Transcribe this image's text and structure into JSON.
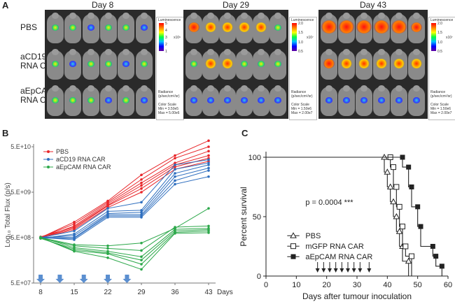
{
  "panel_a": {
    "letter": "A",
    "days": [
      "Day 8",
      "Day 29",
      "Day 43"
    ],
    "rows": [
      {
        "line1": "PBS",
        "line2": ""
      },
      {
        "line1": "aCD19",
        "line2": "RNA CAR"
      },
      {
        "line1": "aEpCAM",
        "line2": "RNA CAR"
      }
    ],
    "colorbars": [
      {
        "title": "Luminescence",
        "ticks": [
          "5",
          "4",
          "3",
          "2",
          "1"
        ],
        "exp": "x10⁶",
        "radiance": "Radiance",
        "units": "(p/sec/cm²/sr)",
        "scale": "Color Scale",
        "min": "Min = 3.50e5",
        "max": "Max = 5.00e6"
      },
      {
        "title": "Luminescence",
        "ticks": [
          "2.0",
          "1.5",
          "1.0",
          "0.5"
        ],
        "exp": "x10⁷",
        "radiance": "Radiance",
        "units": "(p/sec/cm²/sr)",
        "scale": "Color Scale",
        "min": "Min = 1.50e6",
        "max": "Max = 2.00e7"
      },
      {
        "title": "Luminescence",
        "ticks": [
          "2.0",
          "1.5",
          "1.0",
          "0.5"
        ],
        "exp": "x10⁷",
        "radiance": "Radiance",
        "units": "(p/sec/cm²/sr)",
        "scale": "Color Scale",
        "min": "Min = 1.50e6",
        "max": "Max = 2.00e7"
      }
    ]
  },
  "chart_data": [
    {
      "panel": "B",
      "type": "line",
      "ylabel": "Log₁₀ Total Flux (p/s)",
      "xlabel_unit": "Days",
      "x": [
        8,
        15,
        22,
        29,
        36,
        43
      ],
      "x_ticks": [
        "8",
        "15",
        "22",
        "29",
        "36",
        "43"
      ],
      "y_ticks": [
        "5.E+07",
        "5.E+08",
        "5.E+09",
        "5.E+10"
      ],
      "ylim_log10": [
        7.699,
        10.699
      ],
      "legend": [
        "PBS",
        "aCD19 RNA CAR",
        "aEpCAM RNA CAR"
      ],
      "colors": {
        "PBS": "#e8262a",
        "aCD19 RNA CAR": "#2f6fbf",
        "aEpCAM RNA CAR": "#2ca84a",
        "arrow": "#5b8fd0"
      },
      "dosing_days": [
        8,
        12,
        17,
        22,
        26
      ],
      "series": [
        {
          "group": "PBS",
          "values": [
            500000000.0,
            1100000000.0,
            3200000000.0,
            12000000000.0,
            32000000000.0,
            68000000000.0
          ]
        },
        {
          "group": "PBS",
          "values": [
            500000000.0,
            1000000000.0,
            3000000000.0,
            9500000000.0,
            28000000000.0,
            50000000000.0
          ]
        },
        {
          "group": "PBS",
          "values": [
            480000000.0,
            900000000.0,
            2800000000.0,
            8000000000.0,
            22000000000.0,
            40000000000.0
          ]
        },
        {
          "group": "PBS",
          "values": [
            520000000.0,
            850000000.0,
            2600000000.0,
            7000000000.0,
            20000000000.0,
            32000000000.0
          ]
        },
        {
          "group": "PBS",
          "values": [
            500000000.0,
            800000000.0,
            2500000000.0,
            6000000000.0,
            18000000000.0,
            28000000000.0
          ]
        },
        {
          "group": "PBS",
          "values": [
            490000000.0,
            750000000.0,
            2300000000.0,
            5000000000.0,
            16000000000.0,
            24000000000.0
          ]
        },
        {
          "group": "aCD19 RNA CAR",
          "values": [
            500000000.0,
            700000000.0,
            2200000000.0,
            3000000000.0,
            20000000000.0,
            26000000000.0
          ]
        },
        {
          "group": "aCD19 RNA CAR",
          "values": [
            480000000.0,
            600000000.0,
            1900000000.0,
            2000000000.0,
            16000000000.0,
            22000000000.0
          ]
        },
        {
          "group": "aCD19 RNA CAR",
          "values": [
            500000000.0,
            550000000.0,
            1700000000.0,
            1800000000.0,
            13000000000.0,
            20000000000.0
          ]
        },
        {
          "group": "aCD19 RNA CAR",
          "values": [
            510000000.0,
            500000000.0,
            1600000000.0,
            1600000000.0,
            11000000000.0,
            17000000000.0
          ]
        },
        {
          "group": "aCD19 RNA CAR",
          "values": [
            490000000.0,
            480000000.0,
            1500000000.0,
            1500000000.0,
            9000000000.0,
            15000000000.0
          ]
        },
        {
          "group": "aCD19 RNA CAR",
          "values": [
            500000000.0,
            450000000.0,
            1400000000.0,
            1400000000.0,
            7500000000.0,
            11000000000.0
          ]
        },
        {
          "group": "aEpCAM RNA CAR",
          "values": [
            500000000.0,
            350000000.0,
            330000000.0,
            380000000.0,
            800000000.0,
            2200000000.0
          ]
        },
        {
          "group": "aEpCAM RNA CAR",
          "values": [
            490000000.0,
            330000000.0,
            290000000.0,
            260000000.0,
            850000000.0,
            900000000.0
          ]
        },
        {
          "group": "aEpCAM RNA CAR",
          "values": [
            510000000.0,
            300000000.0,
            250000000.0,
            190000000.0,
            760000000.0,
            800000000.0
          ]
        },
        {
          "group": "aEpCAM RNA CAR",
          "values": [
            480000000.0,
            280000000.0,
            230000000.0,
            160000000.0,
            700000000.0,
            750000000.0
          ]
        },
        {
          "group": "aEpCAM RNA CAR",
          "values": [
            500000000.0,
            260000000.0,
            220000000.0,
            130000000.0,
            650000000.0,
            700000000.0
          ]
        },
        {
          "group": "aEpCAM RNA CAR",
          "values": [
            500000000.0,
            250000000.0,
            180000000.0,
            100000000.0,
            620000000.0,
            640000000.0
          ]
        }
      ]
    },
    {
      "panel": "C",
      "type": "line",
      "subtype": "kaplan-meier",
      "xlabel": "Days after tumour inoculation",
      "ylabel": "Percent survival",
      "xlim": [
        0,
        60
      ],
      "ylim": [
        0,
        100
      ],
      "x_ticks": [
        "0",
        "10",
        "20",
        "30",
        "40",
        "50",
        "60"
      ],
      "y_ticks": [
        "0",
        "50",
        "100"
      ],
      "annotation": "p = 0.0004 ***",
      "legend": [
        "PBS",
        "mGFP RNA CAR",
        "aEpCAM RNA CAR"
      ],
      "treatment_days": [
        17,
        19,
        21,
        23,
        25,
        27,
        29,
        31,
        34
      ],
      "series": [
        {
          "name": "PBS",
          "marker": "triangle-open",
          "steps": [
            [
              0,
              100
            ],
            [
              39,
              100
            ],
            [
              39,
              87.5
            ],
            [
              40,
              87.5
            ],
            [
              40,
              75
            ],
            [
              41,
              75
            ],
            [
              41,
              62.5
            ],
            [
              42,
              62.5
            ],
            [
              42,
              50
            ],
            [
              43,
              50
            ],
            [
              43,
              37.5
            ],
            [
              44,
              37.5
            ],
            [
              44,
              25
            ],
            [
              45,
              25
            ],
            [
              45,
              12.5
            ],
            [
              47,
              12.5
            ],
            [
              47,
              0
            ]
          ]
        },
        {
          "name": "mGFP RNA CAR",
          "marker": "square-open",
          "steps": [
            [
              0,
              100
            ],
            [
              41,
              100
            ],
            [
              41,
              91.7
            ],
            [
              42,
              91.7
            ],
            [
              42,
              75
            ],
            [
              43,
              75
            ],
            [
              43,
              58.3
            ],
            [
              44,
              58.3
            ],
            [
              44,
              41.7
            ],
            [
              45,
              41.7
            ],
            [
              45,
              25
            ],
            [
              46,
              25
            ],
            [
              46,
              16.7
            ],
            [
              48,
              16.7
            ],
            [
              48,
              0
            ]
          ]
        },
        {
          "name": "aEpCAM RNA CAR",
          "marker": "square-filled",
          "steps": [
            [
              0,
              100
            ],
            [
              45,
              100
            ],
            [
              45,
              91.7
            ],
            [
              47,
              91.7
            ],
            [
              47,
              75
            ],
            [
              48,
              75
            ],
            [
              48,
              58.3
            ],
            [
              50,
              58.3
            ],
            [
              50,
              41.7
            ],
            [
              51,
              41.7
            ],
            [
              51,
              25
            ],
            [
              55,
              25
            ],
            [
              55,
              16.7
            ],
            [
              56,
              16.7
            ],
            [
              56,
              8.3
            ],
            [
              58,
              8.3
            ],
            [
              58,
              0
            ]
          ]
        }
      ]
    }
  ]
}
